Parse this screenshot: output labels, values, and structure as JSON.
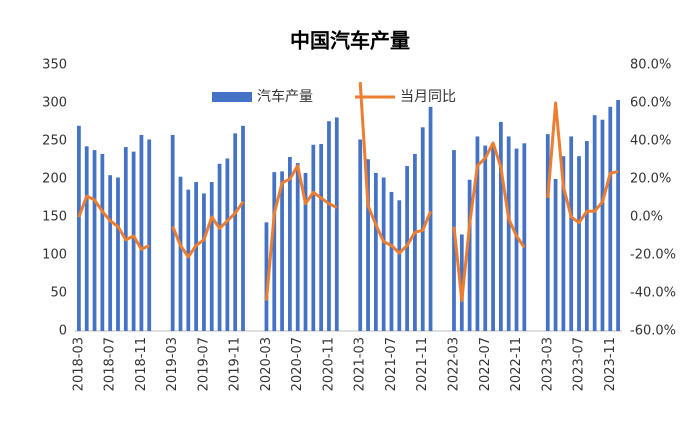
{
  "chart_data": {
    "type": "bar_line",
    "title": "中国汽车产量",
    "categories": [
      "2018-03",
      null,
      null,
      null,
      "2018-07",
      null,
      null,
      null,
      "2018-11",
      null,
      null,
      null,
      "2019-03",
      null,
      null,
      null,
      "2019-07",
      null,
      null,
      null,
      "2019-11",
      null,
      null,
      null,
      "2020-03",
      null,
      null,
      null,
      "2020-07",
      null,
      null,
      null,
      "2020-11",
      null,
      null,
      null,
      "2021-03",
      null,
      null,
      null,
      "2021-07",
      null,
      null,
      null,
      "2021-11",
      null,
      null,
      null,
      "2022-03",
      null,
      null,
      null,
      "2022-07",
      null,
      null,
      null,
      "2022-11",
      null,
      null,
      null,
      "2023-03",
      null,
      null,
      null,
      "2023-07",
      null,
      null,
      null,
      "2023-11",
      null
    ],
    "series": [
      {
        "name": "汽车产量",
        "type": "bar",
        "color": "#4472c4",
        "values": [
          270,
          243,
          238,
          233,
          205,
          202,
          242,
          236,
          258,
          252,
          null,
          null,
          258,
          203,
          186,
          196,
          181,
          196,
          220,
          227,
          260,
          270,
          null,
          null,
          143,
          209,
          210,
          229,
          221,
          208,
          245,
          246,
          276,
          281,
          null,
          null,
          252,
          226,
          208,
          202,
          183,
          172,
          217,
          233,
          268,
          295,
          null,
          null,
          238,
          127,
          199,
          256,
          244,
          243,
          275,
          256,
          240,
          247,
          null,
          null,
          259,
          200,
          230,
          256,
          230,
          250,
          284,
          278,
          295,
          304
        ]
      },
      {
        "name": "当月同比",
        "type": "line",
        "axis": "y2",
        "color": "#ed7d31",
        "values": [
          0,
          11,
          9,
          3,
          -2,
          -5,
          -12,
          -10,
          -17,
          -15,
          null,
          null,
          -5,
          -15,
          -21,
          -15,
          -12,
          0,
          -6,
          -2,
          2,
          8,
          null,
          null,
          -44,
          2,
          18,
          20,
          27,
          7,
          13,
          10,
          7,
          5,
          null,
          null,
          71,
          6,
          -4,
          -13,
          -15,
          -19,
          -15,
          -8,
          -7,
          3,
          null,
          null,
          -5,
          -44,
          -4,
          27,
          31,
          39,
          26,
          -1,
          -10,
          -16,
          null,
          null,
          10,
          60,
          16,
          0,
          -3,
          3,
          3,
          8,
          23,
          24
        ]
      }
    ],
    "ylim": [
      0,
      350
    ],
    "yticks": [
      0,
      50,
      100,
      150,
      200,
      250,
      300,
      350
    ],
    "y2lim": [
      -60,
      80
    ],
    "y2ticks": [
      {
        "value": -60,
        "label": "-60.0%"
      },
      {
        "value": -40,
        "label": "-40.0%"
      },
      {
        "value": -20,
        "label": "-20.0%"
      },
      {
        "value": 0,
        "label": "0.0%"
      },
      {
        "value": 20,
        "label": "20.0%"
      },
      {
        "value": 40,
        "label": "40.0%"
      },
      {
        "value": 60,
        "label": "60.0%"
      },
      {
        "value": 80,
        "label": "80.0%"
      }
    ],
    "grid": false,
    "legend": "top"
  }
}
